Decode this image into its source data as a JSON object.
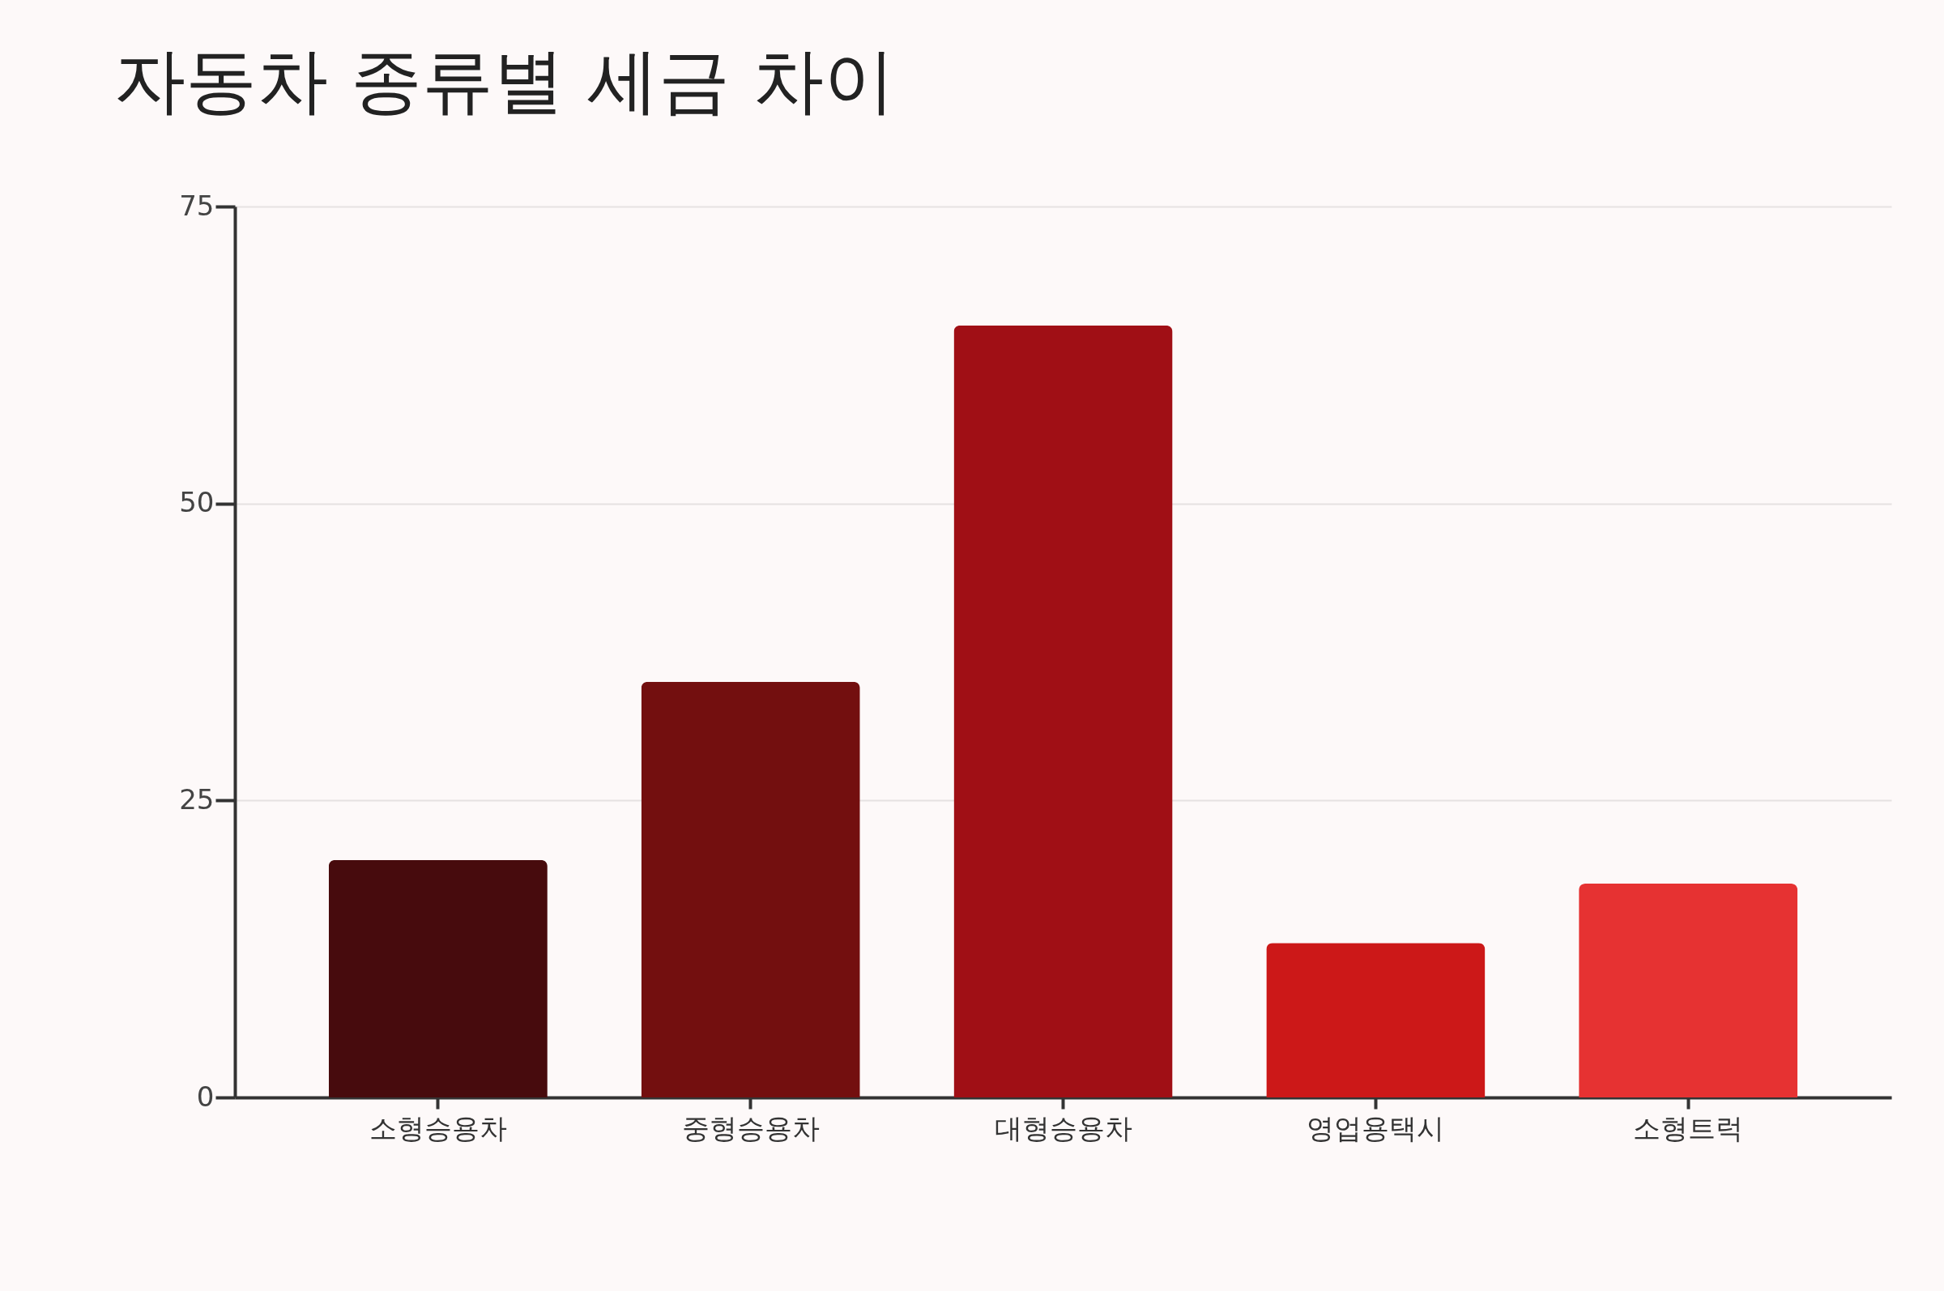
{
  "chart_data": {
    "type": "bar",
    "title": "자동차 종류별 세금 차이",
    "categories": [
      "소형승용차",
      "중형승용차",
      "대형승용차",
      "영업용택시",
      "소형트럭"
    ],
    "values": [
      20,
      35,
      65,
      13,
      18
    ],
    "colors": [
      "#470b0d",
      "#730f0f",
      "#a00f15",
      "#cc1818",
      "#e63232"
    ],
    "ylim": [
      0,
      75
    ],
    "yticks": [
      0,
      25,
      50,
      75
    ],
    "grid": "y"
  }
}
